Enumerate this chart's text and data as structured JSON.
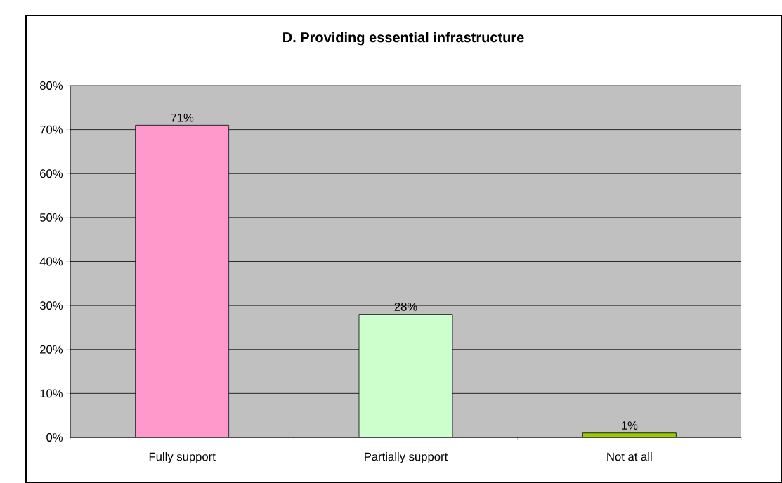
{
  "chart_data": {
    "type": "bar",
    "title": "D. Providing essential infrastructure",
    "categories": [
      "Fully support",
      "Partially support",
      "Not at all"
    ],
    "values": [
      71,
      28,
      1
    ],
    "colors": [
      "#ff99cc",
      "#ccffcc",
      "#99cc00"
    ],
    "value_labels": [
      "71%",
      "28%",
      "1%"
    ],
    "ylim": [
      0,
      80
    ],
    "yticks": [
      {
        "value": 0,
        "label": "0%"
      },
      {
        "value": 10,
        "label": "10%"
      },
      {
        "value": 20,
        "label": "20%"
      },
      {
        "value": 30,
        "label": "30%"
      },
      {
        "value": 40,
        "label": "40%"
      },
      {
        "value": 50,
        "label": "50%"
      },
      {
        "value": 60,
        "label": "60%"
      },
      {
        "value": 70,
        "label": "70%"
      },
      {
        "value": 80,
        "label": "80%"
      }
    ],
    "grid": "y"
  }
}
